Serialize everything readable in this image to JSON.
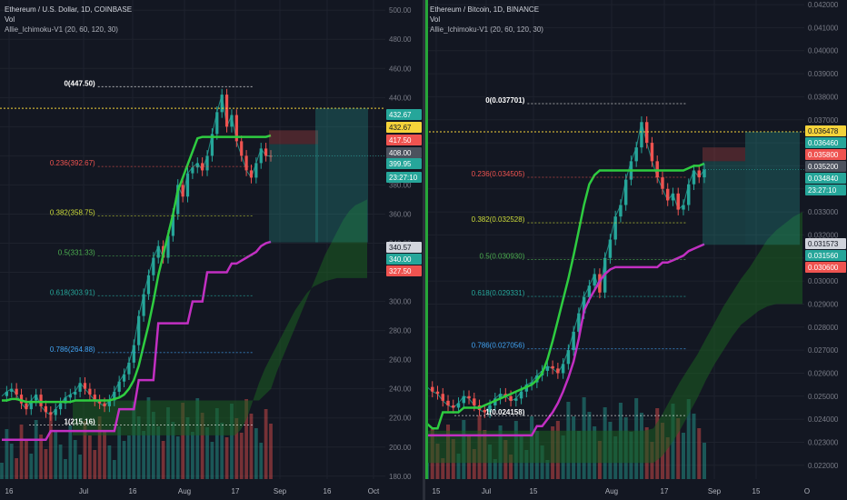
{
  "panels": [
    {
      "symbol": "Ethereum / U.S. Dollar, 1D, COINBASE",
      "vol_label": "Vol",
      "indicator": "Allie_Ichimoku-V1 (20, 60, 120, 30)",
      "price_labels": [
        {
          "text": "432.67",
          "color": "#26a69a"
        },
        {
          "text": "432.67",
          "color": "#f5d33a"
        },
        {
          "text": "417.50",
          "color": "#ef5350"
        },
        {
          "text": "408.00",
          "color": "#4c525e"
        },
        {
          "text": "399.95",
          "color": "#26a69a"
        },
        {
          "text": "23:27:10",
          "color": "#26a69a"
        },
        {
          "text": "340.57",
          "color": "#d1d4dc"
        },
        {
          "text": "340.00",
          "color": "#26a69a"
        },
        {
          "text": "327.50",
          "color": "#ef5350"
        }
      ],
      "fib_labels": [
        "0(447.50)",
        "0.236(392.67)",
        "0.382(358.75)",
        "0.5(331.33)",
        "0.618(303.91)",
        "0.786(264.88)",
        "1(215.16)"
      ],
      "chart_data": {
        "type": "candlestick",
        "y_ticks": [
          "500.00",
          "480.00",
          "460.00",
          "440.00",
          "420.00",
          "400.00",
          "380.00",
          "360.00",
          "340.00",
          "320.00",
          "300.00",
          "280.00",
          "260.00",
          "240.00",
          "220.00",
          "200.00",
          "180.00"
        ],
        "x_ticks": [
          "16",
          "Jul",
          "16",
          "Aug",
          "17",
          "Sep",
          "16",
          "Oct"
        ],
        "ylim": [
          178,
          507
        ],
        "fib_levels": [
          447.5,
          392.67,
          358.75,
          331.33,
          303.91,
          264.88,
          215.16
        ],
        "horizontal_line": 432.67,
        "last_price": 399.95,
        "position": {
          "entry": 408.0,
          "stop": 417.5,
          "target": 340.57
        },
        "close": [
          235,
          238,
          240,
          236,
          230,
          226,
          232,
          236,
          228,
          224,
          222,
          226,
          230,
          234,
          236,
          238,
          244,
          240,
          236,
          232,
          230,
          228,
          232,
          238,
          245,
          250,
          258,
          270,
          290,
          305,
          318,
          330,
          338,
          330,
          345,
          360,
          380,
          372,
          388,
          392,
          395,
          390,
          400,
          415,
          430,
          442,
          420,
          428,
          410,
          400,
          390,
          385,
          395,
          405,
          400,
          399.95
        ],
        "base_line": [
          232,
          232,
          233,
          233,
          232,
          231,
          231,
          231,
          231,
          231,
          231,
          231,
          231,
          231,
          231,
          232,
          232,
          232,
          232,
          232,
          232,
          232,
          232,
          233,
          234,
          236,
          240,
          246,
          256,
          270,
          284,
          300,
          318,
          332,
          346,
          360,
          376,
          385,
          394,
          403,
          412,
          413,
          413,
          413,
          413,
          413,
          413,
          413,
          413,
          413,
          413,
          413,
          413,
          413,
          413,
          414
        ],
        "conversion_line": [
          205,
          205,
          205,
          205,
          205,
          205,
          205,
          205,
          205,
          205,
          211,
          211,
          211,
          211,
          211,
          211,
          211,
          211,
          211,
          211,
          211,
          211,
          211,
          211,
          226,
          226,
          226,
          226,
          246,
          246,
          246,
          246,
          285,
          285,
          285,
          285,
          285,
          285,
          285,
          300,
          300,
          300,
          320,
          320,
          320,
          320,
          320,
          326,
          326,
          328,
          330,
          332,
          334,
          338,
          340,
          341
        ],
        "cloud_upper": [
          232,
          232,
          232,
          232,
          232,
          232,
          232,
          232,
          232,
          232,
          232,
          232,
          232,
          232,
          232,
          232,
          232,
          232,
          232,
          232,
          232,
          232,
          232,
          232,
          232,
          232,
          232,
          232,
          232,
          232,
          232,
          232,
          236,
          240,
          252,
          262,
          272,
          282,
          292,
          302,
          312,
          322,
          332,
          340,
          348,
          356,
          362,
          366,
          368,
          370
        ],
        "cloud_lower": [
          208,
          208,
          208,
          208,
          208,
          208,
          208,
          208,
          208,
          208,
          208,
          208,
          208,
          208,
          208,
          208,
          208,
          208,
          208,
          208,
          208,
          208,
          208,
          208,
          208,
          208,
          208,
          208,
          212,
          220,
          232,
          244,
          254,
          262,
          270,
          278,
          286,
          294,
          300,
          306,
          310,
          312,
          314,
          315,
          316,
          316,
          316,
          316,
          316,
          316
        ]
      }
    },
    {
      "symbol": "Ethereum / Bitcoin, 1D, BINANCE",
      "vol_label": "Vol",
      "indicator": "Allie_Ichimoku-V1 (20, 60, 120, 30)",
      "price_labels": [
        {
          "text": "0.036478",
          "color": "#f5d33a"
        },
        {
          "text": "0.036460",
          "color": "#26a69a"
        },
        {
          "text": "0.035800",
          "color": "#ef5350"
        },
        {
          "text": "0.035200",
          "color": "#4c525e"
        },
        {
          "text": "0.034840",
          "color": "#26a69a"
        },
        {
          "text": "23:27:10",
          "color": "#26a69a"
        },
        {
          "text": "0.031573",
          "color": "#d1d4dc"
        },
        {
          "text": "0.031560",
          "color": "#26a69a"
        },
        {
          "text": "0.030600",
          "color": "#ef5350"
        }
      ],
      "fib_labels": [
        "0(0.037701)",
        "0.236(0.034505)",
        "0.382(0.032528)",
        "0.5(0.030930)",
        "0.618(0.029331)",
        "0.786(0.027056)",
        "1(0.024158)"
      ],
      "chart_data": {
        "type": "candlestick",
        "y_ticks": [
          "0.042000",
          "0.041000",
          "0.040000",
          "0.039000",
          "0.038000",
          "0.037000",
          "0.036000",
          "0.035000",
          "0.034000",
          "0.033000",
          "0.032000",
          "0.031000",
          "0.030000",
          "0.029000",
          "0.028000",
          "0.027000",
          "0.026000",
          "0.025000",
          "0.024000",
          "0.023000",
          "0.022000"
        ],
        "x_ticks": [
          "15",
          "Jul",
          "15",
          "Aug",
          "17",
          "Sep",
          "15",
          "O"
        ],
        "ylim": [
          0.0214,
          0.0422
        ],
        "fib_levels": [
          0.037701,
          0.034505,
          0.032528,
          0.03093,
          0.029331,
          0.027056,
          0.024158
        ],
        "horizontal_line": 0.036478,
        "last_price": 0.03484,
        "position": {
          "entry": 0.0352,
          "stop": 0.0358,
          "target": 0.031573
        },
        "close": [
          0.0254,
          0.0252,
          0.0251,
          0.0248,
          0.0246,
          0.0245,
          0.0247,
          0.025,
          0.0249,
          0.0246,
          0.0244,
          0.0243,
          0.0246,
          0.0249,
          0.0251,
          0.025,
          0.0248,
          0.0249,
          0.0252,
          0.0255,
          0.0256,
          0.0259,
          0.0261,
          0.0263,
          0.0262,
          0.026,
          0.0264,
          0.027,
          0.0278,
          0.0286,
          0.0293,
          0.0298,
          0.0303,
          0.0295,
          0.031,
          0.0318,
          0.0328,
          0.0333,
          0.0344,
          0.0352,
          0.0358,
          0.0369,
          0.036,
          0.0352,
          0.0345,
          0.034,
          0.0335,
          0.0338,
          0.0331,
          0.0333,
          0.0342,
          0.0348,
          0.0345,
          0.03484
        ],
        "base_line": [
          0.0238,
          0.0236,
          0.0236,
          0.0243,
          0.0243,
          0.0243,
          0.0243,
          0.0245,
          0.0245,
          0.0245,
          0.0245,
          0.0246,
          0.0247,
          0.0248,
          0.0249,
          0.025,
          0.0251,
          0.0252,
          0.0253,
          0.0254,
          0.0255,
          0.0257,
          0.026,
          0.0266,
          0.0274,
          0.0283,
          0.0292,
          0.0301,
          0.0311,
          0.0322,
          0.0333,
          0.0342,
          0.0346,
          0.0348,
          0.0348,
          0.0348,
          0.0348,
          0.0348,
          0.0348,
          0.0348,
          0.0348,
          0.0348,
          0.0348,
          0.0348,
          0.0348,
          0.0348,
          0.0348,
          0.0348,
          0.0348,
          0.0348,
          0.0349,
          0.035,
          0.035,
          0.0351
        ],
        "conversion_line": [
          0.0233,
          0.0233,
          0.0233,
          0.0233,
          0.0233,
          0.0233,
          0.0233,
          0.0233,
          0.0233,
          0.0233,
          0.0233,
          0.0233,
          0.0233,
          0.0233,
          0.0233,
          0.0233,
          0.0233,
          0.0233,
          0.0233,
          0.0233,
          0.0233,
          0.0237,
          0.0237,
          0.024,
          0.0243,
          0.0247,
          0.0252,
          0.0258,
          0.0265,
          0.0275,
          0.0287,
          0.0292,
          0.0296,
          0.03,
          0.0303,
          0.0305,
          0.0306,
          0.0306,
          0.0306,
          0.0306,
          0.0306,
          0.0306,
          0.0306,
          0.0306,
          0.0306,
          0.0308,
          0.0308,
          0.0309,
          0.031,
          0.0311,
          0.0313,
          0.0314,
          0.0315,
          0.0316
        ],
        "cloud_upper": [
          0.0235,
          0.0235,
          0.0235,
          0.0235,
          0.0235,
          0.0235,
          0.0235,
          0.0235,
          0.0235,
          0.0235,
          0.0235,
          0.0235,
          0.0235,
          0.0235,
          0.0235,
          0.0235,
          0.0235,
          0.0235,
          0.0235,
          0.0235,
          0.0235,
          0.0235,
          0.0235,
          0.0235,
          0.0235,
          0.0235,
          0.0236,
          0.0242,
          0.0249,
          0.0256,
          0.0262,
          0.0268,
          0.0275,
          0.0282,
          0.0289,
          0.0295,
          0.0301,
          0.0306,
          0.0312,
          0.0318,
          0.0322,
          0.0325,
          0.0328,
          0.033
        ],
        "cloud_lower": [
          0.0221,
          0.0221,
          0.0221,
          0.0221,
          0.0221,
          0.0221,
          0.0221,
          0.0221,
          0.0221,
          0.0221,
          0.0221,
          0.0221,
          0.0221,
          0.0221,
          0.0221,
          0.0221,
          0.0221,
          0.0221,
          0.0221,
          0.0221,
          0.0221,
          0.0221,
          0.0221,
          0.0221,
          0.0221,
          0.0221,
          0.0221,
          0.0224,
          0.0229,
          0.0235,
          0.0242,
          0.0249,
          0.0257,
          0.0264,
          0.027,
          0.0276,
          0.0281,
          0.0284,
          0.0287,
          0.0289,
          0.029,
          0.029,
          0.029,
          0.029
        ]
      }
    }
  ]
}
